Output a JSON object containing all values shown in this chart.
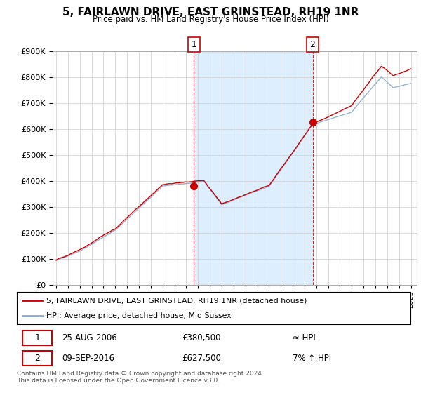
{
  "title": "5, FAIRLAWN DRIVE, EAST GRINSTEAD, RH19 1NR",
  "subtitle": "Price paid vs. HM Land Registry's House Price Index (HPI)",
  "ylim": [
    0,
    900000
  ],
  "yticks": [
    0,
    100000,
    200000,
    300000,
    400000,
    500000,
    600000,
    700000,
    800000,
    900000
  ],
  "ytick_labels": [
    "£0",
    "£100K",
    "£200K",
    "£300K",
    "£400K",
    "£500K",
    "£600K",
    "£700K",
    "£800K",
    "£900K"
  ],
  "sale1_year": 2006.65,
  "sale1_price": 380500,
  "sale1_label": "1",
  "sale1_date": "25-AUG-2006",
  "sale1_price_str": "£380,500",
  "sale1_vs": "≈ HPI",
  "sale2_year": 2016.69,
  "sale2_price": 627500,
  "sale2_label": "2",
  "sale2_date": "09-SEP-2016",
  "sale2_price_str": "£627,500",
  "sale2_vs": "7% ↑ HPI",
  "legend_line1": "5, FAIRLAWN DRIVE, EAST GRINSTEAD, RH19 1NR (detached house)",
  "legend_line2": "HPI: Average price, detached house, Mid Sussex",
  "footer": "Contains HM Land Registry data © Crown copyright and database right 2024.\nThis data is licensed under the Open Government Licence v3.0.",
  "line_color_red": "#cc0000",
  "line_color_blue": "#88aacc",
  "shade_color": "#ddeeff",
  "grid_color": "#cccccc",
  "xlim_left": 1994.7,
  "xlim_right": 2025.5
}
